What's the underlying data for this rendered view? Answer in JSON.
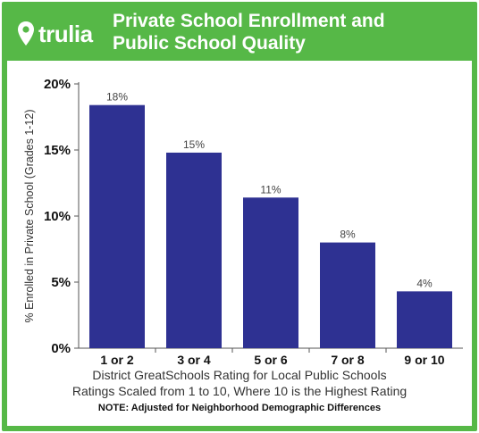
{
  "brand": {
    "logo_text": "trulia",
    "logo_icon": "location-pin-icon",
    "green": "#56b847"
  },
  "header": {
    "title_line1": "Private School Enrollment and",
    "title_line2": "Public School Quality"
  },
  "chart_data": {
    "type": "bar",
    "categories": [
      "1 or 2",
      "3 or 4",
      "5 or 6",
      "7 or 8",
      "9 or 10"
    ],
    "values": [
      18.4,
      14.8,
      11.4,
      8.0,
      4.3
    ],
    "data_labels": [
      "18%",
      "15%",
      "11%",
      "8%",
      "4%"
    ],
    "ylim": [
      0,
      20
    ],
    "yticks": [
      0,
      5,
      10,
      15,
      20
    ],
    "ytick_labels": [
      "0%",
      "5%",
      "10%",
      "15%",
      "20%"
    ],
    "ylabel": "% Enrolled in Private School (Grades 1-12)",
    "xlabel_line1": "District GreatSchools Rating for Local Public Schools",
    "xlabel_line2": "Ratings Scaled from 1 to 10, Where 10 is the Highest Rating",
    "note": "NOTE: Adjusted for Neighborhood Demographic Differences",
    "bar_color": "#2e3192",
    "grid": false,
    "legend": "none"
  }
}
